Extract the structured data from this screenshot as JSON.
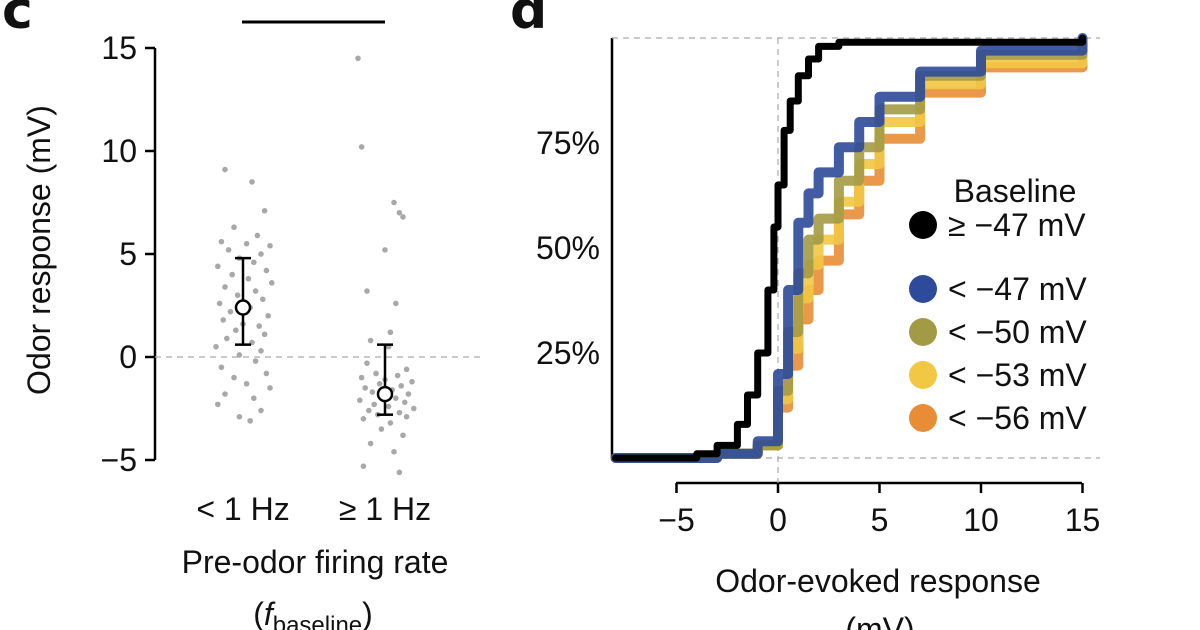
{
  "chart_data": [
    {
      "type": "scatter",
      "panel_label": "c",
      "ylabel": "Odor response (mV)",
      "xlabel": "Pre-odor firing rate",
      "xlabel_sub_prefix": "(",
      "xlabel_sub_symbol": "f",
      "xlabel_sub_subscript": "baseline",
      "xlabel_sub_suffix": ")",
      "ylim": [
        -5,
        15
      ],
      "yticks": [
        {
          "value": -5,
          "label": "−5"
        },
        {
          "value": 0,
          "label": "0"
        },
        {
          "value": 5,
          "label": "5"
        },
        {
          "value": 10,
          "label": "10"
        },
        {
          "value": 15,
          "label": "15"
        }
      ],
      "categories": [
        "< 1 Hz",
        "≥ 1 Hz"
      ],
      "reference_line_y": 0,
      "significance_bar": true,
      "summary": [
        {
          "category": "< 1 Hz",
          "mean": 2.4,
          "error_low": 0.6,
          "error_high": 4.8
        },
        {
          "category": "≥ 1 Hz",
          "mean": -1.8,
          "error_low": -2.8,
          "error_high": 0.6
        }
      ],
      "series": [
        {
          "name": "< 1 Hz",
          "points": [
            [
              -0.1,
              9.1
            ],
            [
              0.05,
              8.5
            ],
            [
              0.12,
              7.1
            ],
            [
              -0.05,
              6.3
            ],
            [
              0.08,
              5.9
            ],
            [
              -0.12,
              5.6
            ],
            [
              0.02,
              5.5
            ],
            [
              0.15,
              5.4
            ],
            [
              -0.08,
              5.2
            ],
            [
              0.1,
              5.0
            ],
            [
              -0.02,
              4.8
            ],
            [
              0.06,
              4.6
            ],
            [
              -0.14,
              4.4
            ],
            [
              0.13,
              4.2
            ],
            [
              -0.06,
              4.0
            ],
            [
              0.03,
              3.8
            ],
            [
              0.16,
              3.6
            ],
            [
              -0.1,
              3.4
            ],
            [
              0.07,
              3.2
            ],
            [
              -0.03,
              3.0
            ],
            [
              0.11,
              2.8
            ],
            [
              -0.13,
              2.6
            ],
            [
              0.04,
              2.4
            ],
            [
              -0.07,
              2.2
            ],
            [
              0.14,
              2.0
            ],
            [
              -0.11,
              1.8
            ],
            [
              0.0,
              1.6
            ],
            [
              0.09,
              1.5
            ],
            [
              -0.04,
              1.3
            ],
            [
              0.12,
              1.1
            ],
            [
              -0.09,
              0.9
            ],
            [
              0.05,
              0.7
            ],
            [
              -0.15,
              0.5
            ],
            [
              0.1,
              0.3
            ],
            [
              -0.02,
              0.1
            ],
            [
              0.07,
              -0.2
            ],
            [
              -0.12,
              -0.5
            ],
            [
              0.13,
              -0.8
            ],
            [
              -0.05,
              -1.0
            ],
            [
              0.02,
              -1.3
            ],
            [
              0.15,
              -1.5
            ],
            [
              -0.1,
              -1.8
            ],
            [
              0.06,
              -2.0
            ],
            [
              -0.14,
              -2.3
            ],
            [
              0.1,
              -2.6
            ],
            [
              -0.02,
              -2.9
            ],
            [
              0.04,
              -3.1
            ]
          ]
        },
        {
          "name": "≥ 1 Hz",
          "points": [
            [
              -0.15,
              14.5
            ],
            [
              -0.13,
              10.2
            ],
            [
              0.05,
              7.5
            ],
            [
              0.08,
              7.0
            ],
            [
              0.1,
              6.8
            ],
            [
              0.0,
              5.2
            ],
            [
              -0.1,
              3.2
            ],
            [
              0.06,
              2.6
            ],
            [
              0.03,
              1.2
            ],
            [
              -0.08,
              0.8
            ],
            [
              0.02,
              0.5
            ],
            [
              -0.1,
              -0.3
            ],
            [
              0.12,
              -0.6
            ],
            [
              -0.05,
              -0.8
            ],
            [
              0.07,
              -0.9
            ],
            [
              -0.13,
              -1.0
            ],
            [
              0.0,
              -1.1
            ],
            [
              0.15,
              -1.2
            ],
            [
              -0.03,
              -1.3
            ],
            [
              0.09,
              -1.4
            ],
            [
              -0.11,
              -1.5
            ],
            [
              0.04,
              -1.6
            ],
            [
              -0.07,
              -1.7
            ],
            [
              0.13,
              -1.8
            ],
            [
              -0.01,
              -1.9
            ],
            [
              0.06,
              -2.0
            ],
            [
              -0.14,
              -2.1
            ],
            [
              0.11,
              -2.2
            ],
            [
              -0.06,
              -2.3
            ],
            [
              0.02,
              -2.4
            ],
            [
              0.16,
              -2.5
            ],
            [
              -0.09,
              -2.6
            ],
            [
              0.08,
              -2.7
            ],
            [
              -0.04,
              -2.8
            ],
            [
              0.12,
              -2.9
            ],
            [
              -0.12,
              -3.0
            ],
            [
              0.03,
              -3.2
            ],
            [
              -0.02,
              -3.5
            ],
            [
              0.1,
              -3.8
            ],
            [
              -0.08,
              -4.2
            ],
            [
              0.05,
              -4.6
            ],
            [
              -0.12,
              -5.3
            ],
            [
              0.08,
              -5.6
            ]
          ]
        }
      ]
    },
    {
      "type": "line",
      "subtype": "cumulative_distribution",
      "panel_label": "d",
      "xlabel": "Odor-evoked response",
      "xlabel_unit": "(mV)",
      "ylabel": "",
      "xlim": [
        -8,
        15
      ],
      "ylim": [
        0,
        100
      ],
      "xticks": [
        {
          "value": -5,
          "label": "−5"
        },
        {
          "value": 0,
          "label": "0"
        },
        {
          "value": 5,
          "label": "5"
        },
        {
          "value": 10,
          "label": "10"
        },
        {
          "value": 15,
          "label": "15"
        }
      ],
      "yticks": [
        {
          "value": 25,
          "label": "25%"
        },
        {
          "value": 50,
          "label": "50%"
        },
        {
          "value": 75,
          "label": "75%"
        }
      ],
      "reference_lines": {
        "x": 0,
        "y": [
          0,
          100
        ]
      },
      "legend_title": "Baseline",
      "legend_position": "right",
      "series": [
        {
          "name": "≥ −47 mV",
          "color": "#000000",
          "x": [
            -8,
            -4,
            -3,
            -2,
            -1.5,
            -1,
            -0.5,
            -0.2,
            0,
            0.3,
            0.6,
            1,
            1.5,
            2,
            3,
            15
          ],
          "y": [
            0,
            1,
            3,
            8,
            15,
            25,
            40,
            55,
            65,
            78,
            85,
            91,
            95,
            98,
            99,
            100
          ]
        },
        {
          "name": "< −47 mV",
          "color": "#2E4A9A",
          "x": [
            -8,
            -3,
            -1,
            0,
            0.5,
            1,
            1.5,
            2,
            3,
            4,
            5,
            7,
            10,
            15
          ],
          "y": [
            0,
            1,
            4,
            20,
            40,
            56,
            63,
            68,
            74,
            80,
            86,
            92,
            97,
            100
          ]
        },
        {
          "name": "< −50 mV",
          "color": "#A39A45",
          "x": [
            -8,
            -3,
            -1,
            0,
            0.5,
            1,
            1.5,
            2,
            3,
            4,
            5,
            7,
            10,
            15
          ],
          "y": [
            0,
            1,
            3,
            16,
            30,
            44,
            52,
            57,
            66,
            74,
            83,
            91,
            96,
            99
          ]
        },
        {
          "name": "< −53 mV",
          "color": "#F2C744",
          "x": [
            -8,
            -3,
            -1,
            0,
            0.5,
            1,
            1.5,
            2,
            3,
            4,
            5,
            7,
            10,
            15
          ],
          "y": [
            0,
            1,
            3,
            14,
            26,
            38,
            46,
            52,
            61,
            70,
            80,
            89,
            94,
            98
          ]
        },
        {
          "name": "< −56 mV",
          "color": "#E88D36",
          "x": [
            -8,
            -3,
            -1,
            0,
            0.5,
            1,
            1.5,
            2,
            3,
            4,
            5,
            7,
            10,
            15
          ],
          "y": [
            0,
            1,
            3,
            12,
            22,
            33,
            40,
            47,
            58,
            66,
            76,
            87,
            93,
            97
          ]
        }
      ]
    }
  ]
}
